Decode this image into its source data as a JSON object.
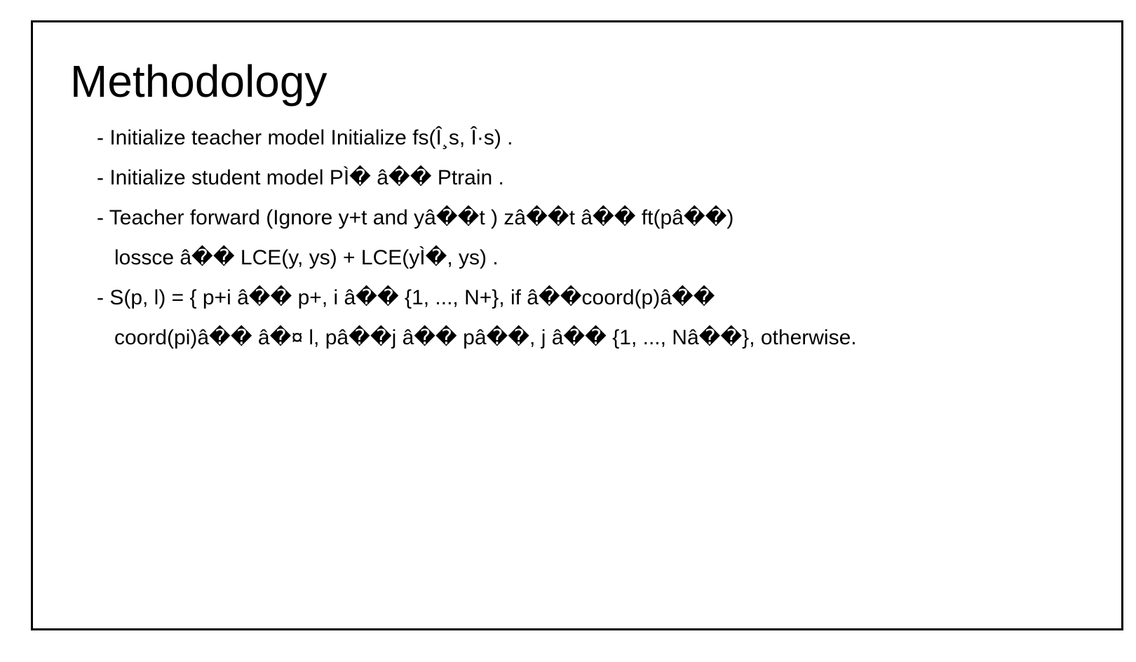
{
  "slide": {
    "title": "Methodology",
    "lines": [
      {
        "text": "- Initialize teacher model Initialize fs(Î¸s, Î·s) .",
        "continuation": false
      },
      {
        "text": "- Initialize student model PÌ� â�� Ptrain .",
        "continuation": false
      },
      {
        "text": "- Teacher forward (Ignore y+t and yâ��t ) zâ��t â�� ft(pâ��)",
        "continuation": false
      },
      {
        "text": "lossce â�� LCE(y, ys) + LCE(yÌ�, ys) .",
        "continuation": true
      },
      {
        "text": "- S(p, l) = { p+i â�� p+, i â�� {1, ..., N+}, if â��coord(p)â��",
        "continuation": false
      },
      {
        "text": "coord(pi)â�� â�¤ l, pâ��j â�� pâ��, j â�� {1, ..., Nâ��}, otherwise.",
        "continuation": true
      }
    ]
  }
}
